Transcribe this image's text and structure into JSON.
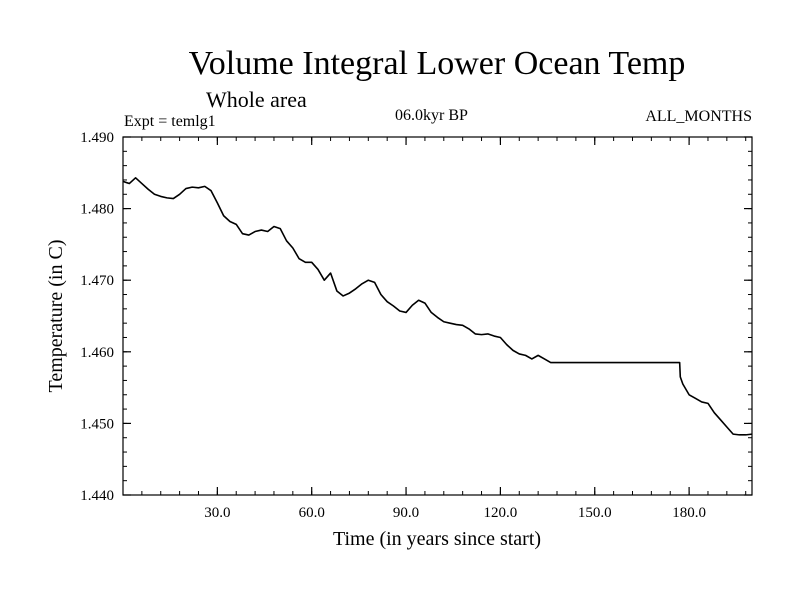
{
  "chart_data": {
    "type": "line",
    "title": "Volume Integral Lower Ocean Temp",
    "subtitle": "Whole area",
    "experiment": "Expt = temlg1",
    "period": "06.0kyr BP",
    "months": "ALL_MONTHS",
    "xlabel": "Time (in years since start)",
    "ylabel": "Temperature (in C)",
    "xlim": [
      0,
      200
    ],
    "ylim": [
      1.44,
      1.49
    ],
    "x_ticks": [
      {
        "value": 30,
        "label": "30.0"
      },
      {
        "value": 60,
        "label": "60.0"
      },
      {
        "value": 90,
        "label": "90.0"
      },
      {
        "value": 120,
        "label": "120.0"
      },
      {
        "value": 150,
        "label": "150.0"
      },
      {
        "value": 180,
        "label": "180.0"
      }
    ],
    "y_ticks": [
      {
        "value": 1.44,
        "label": "1.440"
      },
      {
        "value": 1.45,
        "label": "1.450"
      },
      {
        "value": 1.46,
        "label": "1.460"
      },
      {
        "value": 1.47,
        "label": "1.470"
      },
      {
        "value": 1.48,
        "label": "1.480"
      },
      {
        "value": 1.49,
        "label": "1.490"
      }
    ],
    "grid": false,
    "series": [
      {
        "name": "temlg1",
        "color": "#000000",
        "x": [
          0,
          2,
          4,
          6,
          8,
          10,
          12,
          14,
          16,
          18,
          20,
          22,
          24,
          26,
          28,
          30,
          32,
          34,
          36,
          38,
          40,
          42,
          44,
          46,
          48,
          50,
          52,
          54,
          56,
          58,
          60,
          62,
          64,
          66,
          68,
          70,
          72,
          74,
          76,
          78,
          80,
          82,
          84,
          86,
          88,
          90,
          92,
          94,
          96,
          98,
          100,
          102,
          104,
          106,
          108,
          110,
          112,
          114,
          116,
          118,
          120,
          122,
          124,
          126,
          128,
          130,
          132,
          134,
          136,
          138,
          140,
          150,
          160,
          170,
          177,
          177.2,
          178,
          180,
          182,
          184,
          186,
          188,
          190,
          192,
          194,
          196,
          198,
          200
        ],
        "y": [
          1.4838,
          1.4835,
          1.4843,
          1.4835,
          1.4827,
          1.482,
          1.4817,
          1.4815,
          1.4814,
          1.482,
          1.4828,
          1.483,
          1.4829,
          1.4831,
          1.4825,
          1.4808,
          1.479,
          1.4782,
          1.4778,
          1.4765,
          1.4763,
          1.4768,
          1.477,
          1.4768,
          1.4775,
          1.4772,
          1.4755,
          1.4745,
          1.473,
          1.4725,
          1.4725,
          1.4715,
          1.47,
          1.471,
          1.4685,
          1.4678,
          1.4682,
          1.4688,
          1.4695,
          1.47,
          1.4697,
          1.468,
          1.467,
          1.4664,
          1.4657,
          1.4655,
          1.4665,
          1.4672,
          1.4668,
          1.4655,
          1.4648,
          1.4642,
          1.464,
          1.4638,
          1.4637,
          1.4632,
          1.4625,
          1.4624,
          1.4625,
          1.4622,
          1.462,
          1.461,
          1.4602,
          1.4597,
          1.4595,
          1.459,
          1.4595,
          1.459,
          1.4585,
          1.4585,
          1.4585,
          1.4585,
          1.4585,
          1.4585,
          1.4585,
          1.4565,
          1.4555,
          1.454,
          1.4535,
          1.453,
          1.4528,
          1.4515,
          1.4505,
          1.4495,
          1.4485,
          1.4484,
          1.4484,
          1.4485
        ]
      }
    ]
  }
}
